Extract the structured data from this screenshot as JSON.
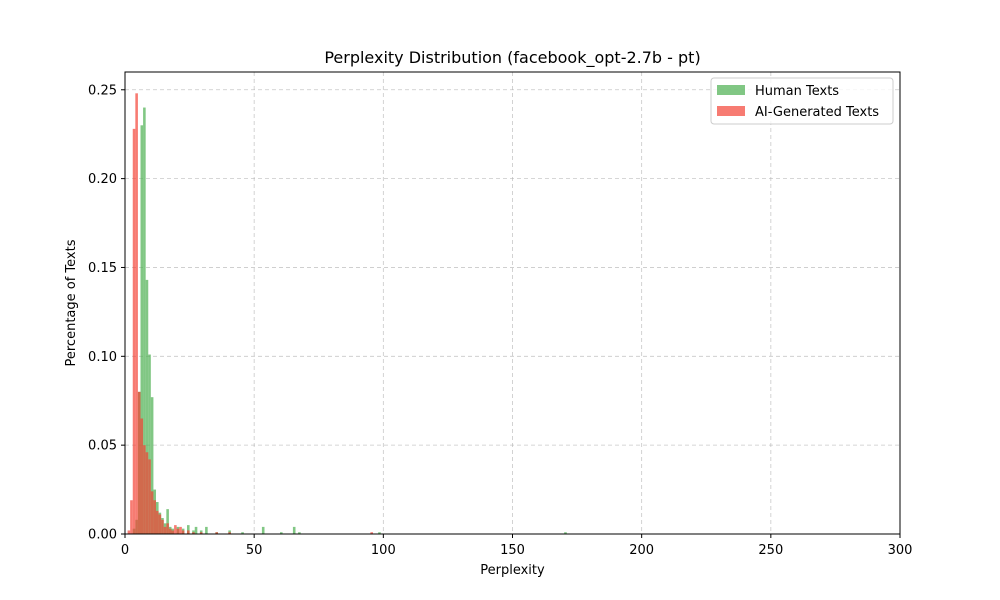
{
  "chart_data": {
    "type": "bar",
    "title": "Perplexity Distribution (facebook_opt-2.7b - pt)",
    "xlabel": "Perplexity",
    "ylabel": "Percentage of Texts",
    "xlim": [
      0,
      300
    ],
    "ylim": [
      0,
      0.26
    ],
    "xticks": [
      0,
      50,
      100,
      150,
      200,
      250,
      300
    ],
    "xtick_labels": [
      "0",
      "50",
      "100",
      "150",
      "200",
      "250",
      "300"
    ],
    "yticks": [
      0.0,
      0.05,
      0.1,
      0.15,
      0.2,
      0.25
    ],
    "ytick_labels": [
      "0.00",
      "0.05",
      "0.10",
      "0.15",
      "0.20",
      "0.25"
    ],
    "grid": true,
    "legend_position": "top-right",
    "series": [
      {
        "name": "Human Texts",
        "color": "#4caf50",
        "bins": [
          {
            "x0": 3.0,
            "x1": 4.0,
            "y": 0.003
          },
          {
            "x0": 4.0,
            "x1": 5.0,
            "y": 0.008
          },
          {
            "x0": 5.0,
            "x1": 6.0,
            "y": 0.08
          },
          {
            "x0": 6.0,
            "x1": 7.0,
            "y": 0.23
          },
          {
            "x0": 7.0,
            "x1": 8.0,
            "y": 0.24
          },
          {
            "x0": 8.0,
            "x1": 9.0,
            "y": 0.143
          },
          {
            "x0": 9.0,
            "x1": 10.0,
            "y": 0.101
          },
          {
            "x0": 10.0,
            "x1": 11.0,
            "y": 0.077
          },
          {
            "x0": 11.0,
            "x1": 12.0,
            "y": 0.025
          },
          {
            "x0": 12.0,
            "x1": 13.0,
            "y": 0.018
          },
          {
            "x0": 13.0,
            "x1": 14.0,
            "y": 0.012
          },
          {
            "x0": 14.0,
            "x1": 15.0,
            "y": 0.009
          },
          {
            "x0": 15.0,
            "x1": 16.0,
            "y": 0.006
          },
          {
            "x0": 16.0,
            "x1": 17.0,
            "y": 0.014
          },
          {
            "x0": 17.0,
            "x1": 18.0,
            "y": 0.004
          },
          {
            "x0": 18.0,
            "x1": 19.0,
            "y": 0.003
          },
          {
            "x0": 20.0,
            "x1": 21.0,
            "y": 0.004
          },
          {
            "x0": 22.0,
            "x1": 23.0,
            "y": 0.003
          },
          {
            "x0": 24.0,
            "x1": 25.0,
            "y": 0.005
          },
          {
            "x0": 26.0,
            "x1": 27.0,
            "y": 0.002
          },
          {
            "x0": 27.0,
            "x1": 28.0,
            "y": 0.004
          },
          {
            "x0": 29.0,
            "x1": 30.0,
            "y": 0.002
          },
          {
            "x0": 31.0,
            "x1": 32.0,
            "y": 0.004
          },
          {
            "x0": 35.0,
            "x1": 36.0,
            "y": 0.001
          },
          {
            "x0": 40.0,
            "x1": 41.0,
            "y": 0.002
          },
          {
            "x0": 45.0,
            "x1": 46.0,
            "y": 0.001
          },
          {
            "x0": 53.0,
            "x1": 54.0,
            "y": 0.004
          },
          {
            "x0": 60.0,
            "x1": 61.0,
            "y": 0.001
          },
          {
            "x0": 65.0,
            "x1": 66.0,
            "y": 0.004
          },
          {
            "x0": 67.0,
            "x1": 68.0,
            "y": 0.001
          },
          {
            "x0": 98.0,
            "x1": 99.0,
            "y": 0.001
          },
          {
            "x0": 170.0,
            "x1": 171.0,
            "y": 0.001
          }
        ]
      },
      {
        "name": "AI-Generated Texts",
        "color": "#f44336",
        "bins": [
          {
            "x0": 1.0,
            "x1": 2.0,
            "y": 0.002
          },
          {
            "x0": 2.0,
            "x1": 3.0,
            "y": 0.019
          },
          {
            "x0": 3.0,
            "x1": 4.0,
            "y": 0.228
          },
          {
            "x0": 4.0,
            "x1": 5.0,
            "y": 0.248
          },
          {
            "x0": 5.0,
            "x1": 6.0,
            "y": 0.08
          },
          {
            "x0": 6.0,
            "x1": 7.0,
            "y": 0.065
          },
          {
            "x0": 7.0,
            "x1": 8.0,
            "y": 0.05
          },
          {
            "x0": 8.0,
            "x1": 9.0,
            "y": 0.046
          },
          {
            "x0": 9.0,
            "x1": 10.0,
            "y": 0.042
          },
          {
            "x0": 10.0,
            "x1": 11.0,
            "y": 0.024
          },
          {
            "x0": 11.0,
            "x1": 12.0,
            "y": 0.019
          },
          {
            "x0": 12.0,
            "x1": 13.0,
            "y": 0.013
          },
          {
            "x0": 13.0,
            "x1": 14.0,
            "y": 0.011
          },
          {
            "x0": 14.0,
            "x1": 15.0,
            "y": 0.008
          },
          {
            "x0": 15.0,
            "x1": 16.0,
            "y": 0.004
          },
          {
            "x0": 16.0,
            "x1": 17.0,
            "y": 0.006
          },
          {
            "x0": 17.0,
            "x1": 18.0,
            "y": 0.003
          },
          {
            "x0": 18.0,
            "x1": 19.0,
            "y": 0.002
          },
          {
            "x0": 19.0,
            "x1": 20.0,
            "y": 0.005
          },
          {
            "x0": 20.0,
            "x1": 21.0,
            "y": 0.003
          },
          {
            "x0": 21.0,
            "x1": 22.0,
            "y": 0.004
          },
          {
            "x0": 22.0,
            "x1": 23.0,
            "y": 0.002
          },
          {
            "x0": 24.0,
            "x1": 25.0,
            "y": 0.002
          },
          {
            "x0": 26.0,
            "x1": 27.0,
            "y": 0.001
          },
          {
            "x0": 29.0,
            "x1": 30.0,
            "y": 0.001
          },
          {
            "x0": 35.0,
            "x1": 36.0,
            "y": 0.001
          },
          {
            "x0": 40.0,
            "x1": 41.0,
            "y": 0.001
          },
          {
            "x0": 95.0,
            "x1": 96.0,
            "y": 0.001
          }
        ]
      }
    ]
  }
}
